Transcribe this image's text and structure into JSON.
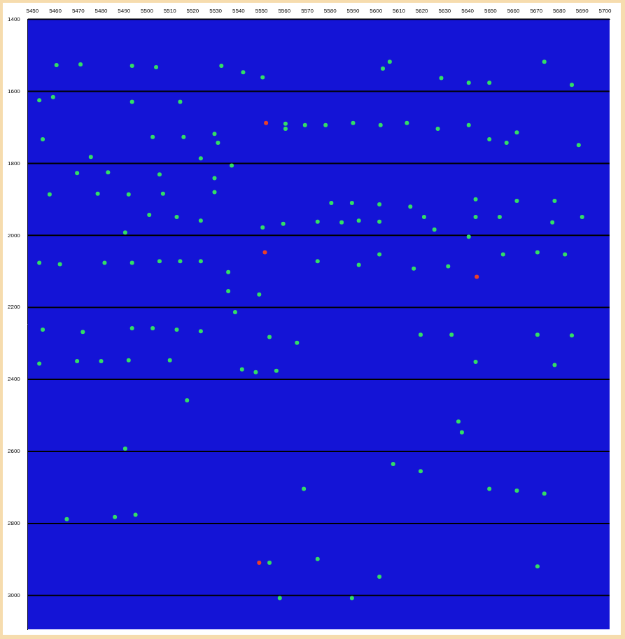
{
  "chart_data": {
    "type": "scatter",
    "xlim": [
      5448,
      5702
    ],
    "ylim": [
      1400,
      3094
    ],
    "xticks": [
      5450,
      5460,
      5470,
      5480,
      5490,
      5500,
      5510,
      5520,
      5530,
      5540,
      5550,
      5560,
      5570,
      5580,
      5590,
      5600,
      5610,
      5620,
      5630,
      5640,
      5650,
      5660,
      5670,
      5680,
      5690,
      5700
    ],
    "yticks": [
      1400,
      1600,
      1800,
      2000,
      2200,
      2400,
      2600,
      2800,
      3000
    ],
    "grid": "y",
    "series": [
      {
        "color": "#33dd66",
        "marker": "circle",
        "x": [
          5460.5,
          5471,
          5493.5,
          5504,
          5532.5,
          5542,
          5550.5,
          5603,
          5606,
          5628.5,
          5640.5,
          5649.5,
          5673.5,
          5685.5,
          5453,
          5459,
          5493.5,
          5514.5,
          5560.5,
          5569,
          5578,
          5590,
          5602,
          5613.5,
          5627,
          5640.5,
          5661.5,
          5502.5,
          5516,
          5529.5,
          5531,
          5560.5,
          5649.5,
          5657,
          5688.5,
          5454.5,
          5475.5,
          5523.5,
          5537,
          5469.5,
          5483,
          5505.5,
          5529.5,
          5457.5,
          5478.5,
          5492,
          5507,
          5529.5,
          5580.5,
          5589.5,
          5601.5,
          5615,
          5643.5,
          5661.5,
          5678,
          5501,
          5513,
          5523.5,
          5550.5,
          5559.5,
          5574.5,
          5585,
          5592.5,
          5601.5,
          5621,
          5625.5,
          5643.5,
          5654,
          5677,
          5690,
          5490.5,
          5640.5,
          5453,
          5462,
          5481.5,
          5493.5,
          5505.5,
          5514.5,
          5523.5,
          5535.5,
          5574.5,
          5592.5,
          5601.5,
          5616.5,
          5631.5,
          5655.5,
          5670.5,
          5682.5,
          5535.5,
          5549,
          5538.5,
          5454.5,
          5472,
          5493.5,
          5502.5,
          5513,
          5523.5,
          5553.5,
          5565.5,
          5619.5,
          5633,
          5670.5,
          5685.5,
          5453,
          5469.5,
          5480,
          5492,
          5510,
          5541.5,
          5547.5,
          5556.5,
          5643.5,
          5678,
          5517.5,
          5636,
          5637.5,
          5490.5,
          5607.5,
          5619.5,
          5568.5,
          5649.5,
          5661.5,
          5673.5,
          5465,
          5486,
          5495,
          5553.5,
          5574.5,
          5601.5,
          5670.5,
          5558,
          5589.5
        ],
        "y": [
          1527,
          1525,
          1529,
          1533,
          1529,
          1547,
          1561,
          1537,
          1518,
          1563,
          1576,
          1576,
          1518,
          1582,
          1625,
          1616,
          1629,
          1629,
          1690,
          1694,
          1694,
          1688,
          1694,
          1688,
          1704,
          1694,
          1714,
          1727,
          1727,
          1718,
          1743,
          1704,
          1733,
          1743,
          1749,
          1733,
          1782,
          1786,
          1806,
          1827,
          1825,
          1831,
          1841,
          1886,
          1884,
          1886,
          1884,
          1880,
          1910,
          1910,
          1914,
          1920,
          1900,
          1904,
          1904,
          1943,
          1949,
          1959,
          1978,
          1968,
          1962,
          1964,
          1959,
          1962,
          1949,
          1984,
          1949,
          1949,
          1964,
          1949,
          1992,
          2004,
          2076,
          2080,
          2076,
          2076,
          2072,
          2072,
          2072,
          2102,
          2072,
          2082,
          2053,
          2092,
          2086,
          2053,
          2047,
          2053,
          2155,
          2164,
          2213,
          2262,
          2268,
          2258,
          2258,
          2262,
          2266,
          2282,
          2298,
          2276,
          2276,
          2276,
          2278,
          2356,
          2349,
          2349,
          2347,
          2347,
          2372,
          2380,
          2376,
          2351,
          2360,
          2458,
          2517,
          2547,
          2592,
          2635,
          2655,
          2704,
          2704,
          2709,
          2717,
          2788,
          2782,
          2776,
          2909,
          2899,
          2948,
          2919,
          3007,
          3007
        ]
      },
      {
        "color": "#e8402a",
        "marker": "circle",
        "x": [
          5552,
          5551.5,
          5644,
          5549
        ],
        "y": [
          1688,
          2047,
          2115,
          2909
        ]
      }
    ]
  }
}
